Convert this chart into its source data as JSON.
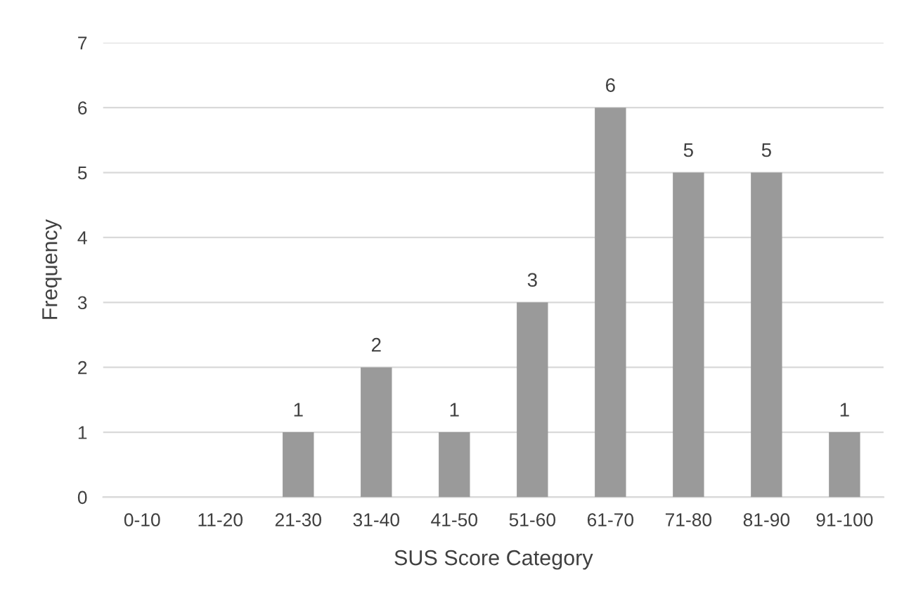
{
  "chart_data": {
    "type": "bar",
    "xlabel": "SUS Score Category",
    "ylabel": "Frequency",
    "categories": [
      "0-10",
      "11-20",
      "21-30",
      "31-40",
      "41-50",
      "51-60",
      "61-70",
      "71-80",
      "81-90",
      "91-100"
    ],
    "values": [
      0,
      0,
      1,
      2,
      1,
      3,
      6,
      5,
      5,
      1
    ],
    "value_labels": [
      null,
      null,
      "1",
      "2",
      "1",
      "3",
      "6",
      "5",
      "5",
      "1"
    ],
    "color": "#9a9a9a",
    "ylim": [
      0,
      7
    ],
    "yticks": [
      0,
      1,
      2,
      3,
      4,
      5,
      6,
      7
    ],
    "grid": "y",
    "legend": false
  }
}
